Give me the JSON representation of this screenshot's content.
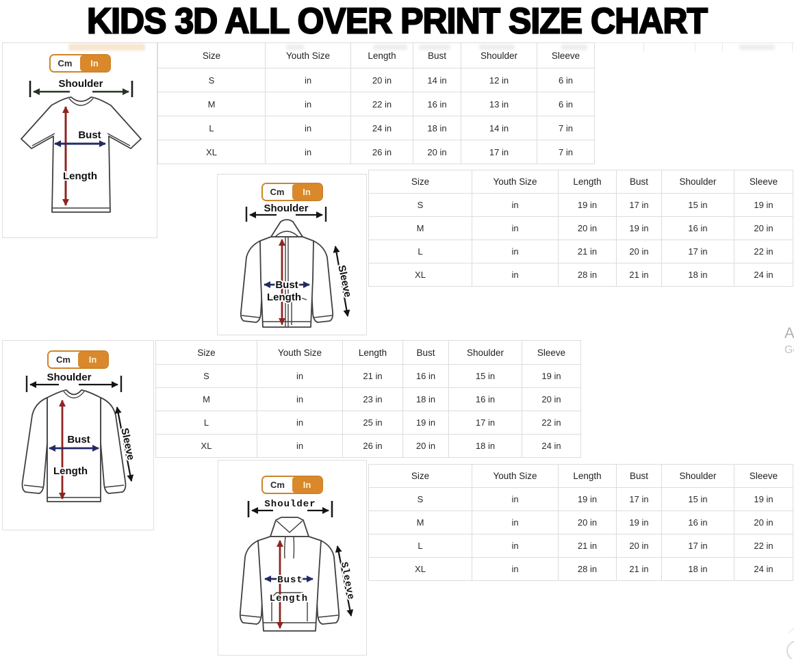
{
  "title": "KIDS 3D ALL OVER PRINT SIZE CHART",
  "unit_toggle": {
    "cm_label": "Cm",
    "in_label": "In",
    "active_unit": "In"
  },
  "diagram_labels": {
    "shoulder": "Shoulder",
    "bust": "Bust",
    "length": "Length",
    "sleeve": "Sleeve"
  },
  "colors": {
    "accent_orange": "#d9882b",
    "length_arrow": "#8e2420",
    "bust_arrow": "#232a63",
    "shoulder_arrow": "#243524",
    "sleeve_arrow": "#141414",
    "table_border": "#dcdcdc"
  },
  "sections": [
    {
      "garment": "t-shirt",
      "table": {
        "headers": [
          "Size",
          "Youth Size",
          "Length",
          "Bust",
          "Shoulder",
          "Sleeve"
        ],
        "rows": [
          [
            "S",
            "in",
            "20 in",
            "14 in",
            "12 in",
            "6 in"
          ],
          [
            "M",
            "in",
            "22 in",
            "16 in",
            "13 in",
            "6 in"
          ],
          [
            "L",
            "in",
            "24 in",
            "18 in",
            "14 in",
            "7 in"
          ],
          [
            "XL",
            "in",
            "26 in",
            "20 in",
            "17 in",
            "7 in"
          ]
        ]
      }
    },
    {
      "garment": "zip-hoodie",
      "table": {
        "headers": [
          "Size",
          "Youth Size",
          "Length",
          "Bust",
          "Shoulder",
          "Sleeve"
        ],
        "rows": [
          [
            "S",
            "in",
            "19 in",
            "17 in",
            "15 in",
            "19 in"
          ],
          [
            "M",
            "in",
            "20 in",
            "19 in",
            "16 in",
            "20 in"
          ],
          [
            "L",
            "in",
            "21 in",
            "20 in",
            "17 in",
            "22 in"
          ],
          [
            "XL",
            "in",
            "28 in",
            "21 in",
            "18 in",
            "24 in"
          ]
        ]
      }
    },
    {
      "garment": "long-sleeve-shirt",
      "table": {
        "headers": [
          "Size",
          "Youth Size",
          "Length",
          "Bust",
          "Shoulder",
          "Sleeve"
        ],
        "rows": [
          [
            "S",
            "in",
            "21 in",
            "16 in",
            "15 in",
            "19 in"
          ],
          [
            "M",
            "in",
            "23 in",
            "18 in",
            "16 in",
            "20 in"
          ],
          [
            "L",
            "in",
            "25 in",
            "19 in",
            "17 in",
            "22 in"
          ],
          [
            "XL",
            "in",
            "26 in",
            "20 in",
            "18 in",
            "24 in"
          ]
        ]
      }
    },
    {
      "garment": "hoodie",
      "table": {
        "headers": [
          "Size",
          "Youth Size",
          "Length",
          "Bust",
          "Shoulder",
          "Sleeve"
        ],
        "rows": [
          [
            "S",
            "in",
            "19 in",
            "17 in",
            "15 in",
            "19 in"
          ],
          [
            "M",
            "in",
            "20 in",
            "19 in",
            "16 in",
            "20 in"
          ],
          [
            "L",
            "in",
            "21 in",
            "20 in",
            "17 in",
            "22 in"
          ],
          [
            "XL",
            "in",
            "28 in",
            "21 in",
            "18 in",
            "24 in"
          ]
        ]
      }
    }
  ],
  "watermark": {
    "line1": "A",
    "line2": "Go"
  }
}
